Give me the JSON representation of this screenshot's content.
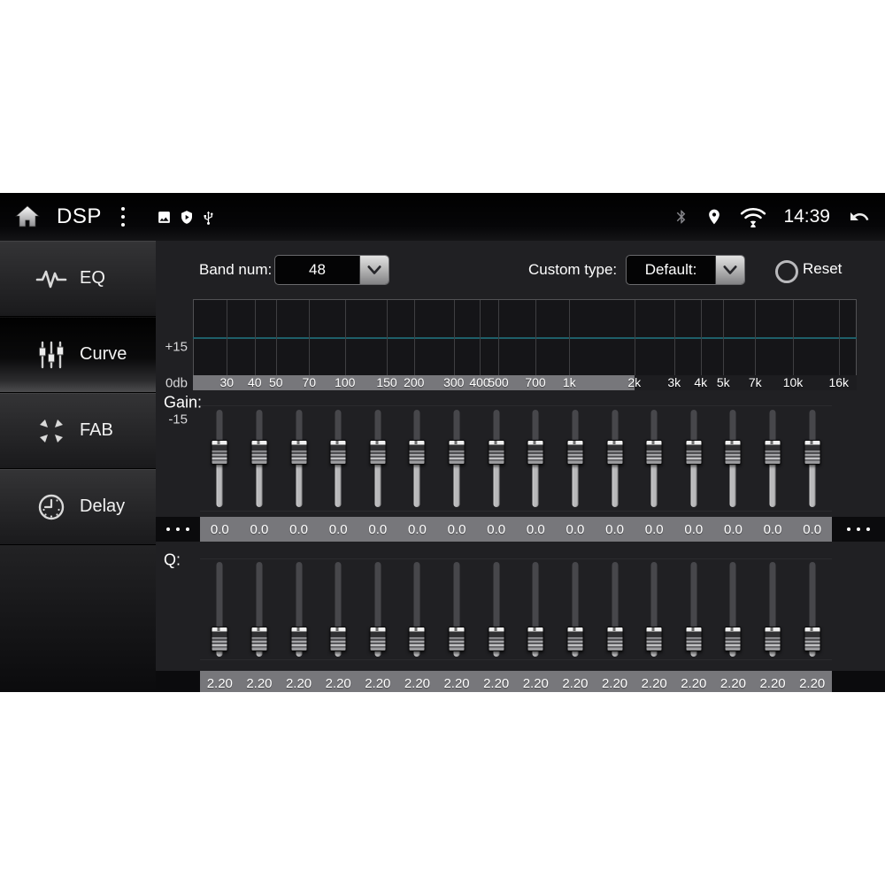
{
  "status_bar": {
    "title": "DSP",
    "time": "14:39",
    "left_icons": [
      "home-icon",
      "menu-dots-icon",
      "gallery-icon",
      "shield-icon",
      "usb-icon"
    ],
    "right_icons": [
      "bluetooth-icon",
      "location-icon",
      "wifi-icon",
      "back-icon"
    ]
  },
  "sidebar": {
    "items": [
      {
        "label": "EQ",
        "icon": "eq-waveform-icon",
        "active": false
      },
      {
        "label": "Curve",
        "icon": "curve-sliders-icon",
        "active": true
      },
      {
        "label": "FAB",
        "icon": "fab-arrows-icon",
        "active": false
      },
      {
        "label": "Delay",
        "icon": "delay-clock-icon",
        "active": false
      }
    ]
  },
  "controls": {
    "band_num_label": "Band num:",
    "band_num_value": "48",
    "custom_type_label": "Custom type:",
    "custom_type_value": "Default:",
    "reset_label": "Reset"
  },
  "graph": {
    "y_labels": [
      "+15",
      "0db",
      "-15"
    ],
    "curve_color": "#1e5f69",
    "curve_level_db": 0,
    "highlight_end_percent": 66.5,
    "ticks": [
      {
        "label": "30",
        "pos": 5.1
      },
      {
        "label": "40",
        "pos": 9.3
      },
      {
        "label": "50",
        "pos": 12.5
      },
      {
        "label": "70",
        "pos": 17.5
      },
      {
        "label": "100",
        "pos": 22.9
      },
      {
        "label": "150",
        "pos": 29.2
      },
      {
        "label": "200",
        "pos": 33.3
      },
      {
        "label": "300",
        "pos": 39.3
      },
      {
        "label": "400",
        "pos": 43.2
      },
      {
        "label": "500",
        "pos": 46.0
      },
      {
        "label": "700",
        "pos": 51.6
      },
      {
        "label": "1k",
        "pos": 56.7
      },
      {
        "label": "2k",
        "pos": 66.5
      },
      {
        "label": "3k",
        "pos": 72.5
      },
      {
        "label": "4k",
        "pos": 76.5
      },
      {
        "label": "5k",
        "pos": 79.9
      },
      {
        "label": "7k",
        "pos": 84.7
      },
      {
        "label": "10k",
        "pos": 90.4
      },
      {
        "label": "16k",
        "pos": 97.3
      }
    ]
  },
  "gain": {
    "label": "Gain:",
    "thumb_percent": 44,
    "values": [
      "0.0",
      "0.0",
      "0.0",
      "0.0",
      "0.0",
      "0.0",
      "0.0",
      "0.0",
      "0.0",
      "0.0",
      "0.0",
      "0.0",
      "0.0",
      "0.0",
      "0.0",
      "0.0"
    ]
  },
  "q": {
    "label": "Q:",
    "thumb_percent": 80,
    "values": [
      "2.20",
      "2.20",
      "2.20",
      "2.20",
      "2.20",
      "2.20",
      "2.20",
      "2.20",
      "2.20",
      "2.20",
      "2.20",
      "2.20",
      "2.20",
      "2.20",
      "2.20",
      "2.20"
    ]
  }
}
